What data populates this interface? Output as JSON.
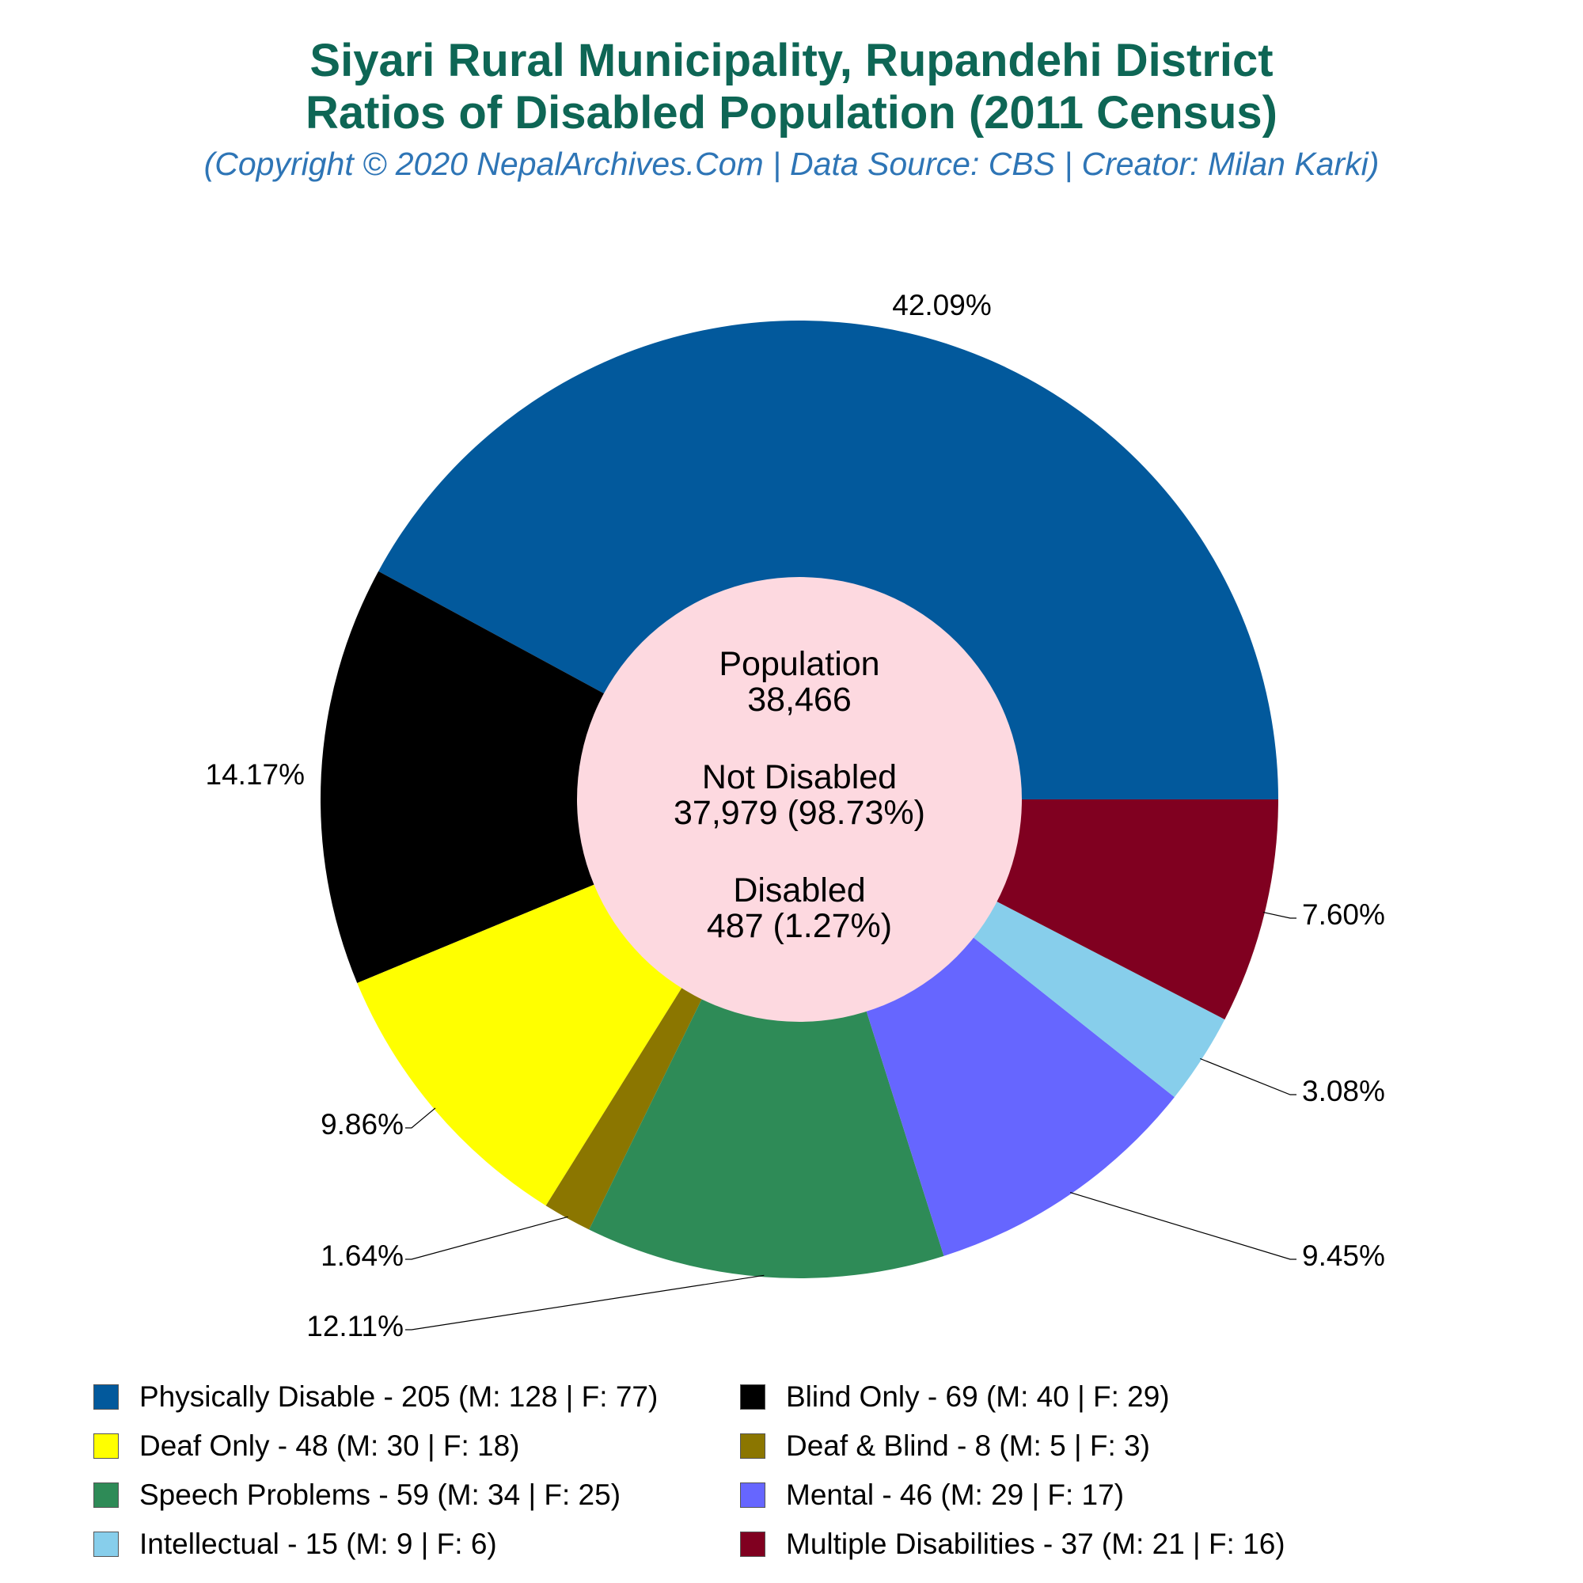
{
  "title_line1": "Siyari Rural Municipality, Rupandehi District",
  "title_line2": "Ratios of Disabled Population (2011 Census)",
  "subtitle": "(Copyright © 2020 NepalArchives.Com | Data Source: CBS | Creator: Milan Karki)",
  "center": {
    "population_label": "Population",
    "population_value": "38,466",
    "not_disabled_label": "Not Disabled",
    "not_disabled_value": "37,979 (98.73%)",
    "disabled_label": "Disabled",
    "disabled_value": "487 (1.27%)",
    "fill": "#fdd9e0"
  },
  "chart_data": {
    "type": "pie",
    "donut": true,
    "legend_position": "bottom",
    "slices": [
      {
        "label": "Physically Disable - 205 (M: 128 | F: 77)",
        "value": 205,
        "percent_label": "42.09%",
        "color": "#02599c"
      },
      {
        "label": "Blind Only - 69 (M: 40 | F: 29)",
        "value": 69,
        "percent_label": "14.17%",
        "color": "#000000"
      },
      {
        "label": "Deaf Only - 48 (M: 30 | F: 18)",
        "value": 48,
        "percent_label": "9.86%",
        "color": "#ffff00"
      },
      {
        "label": "Deaf & Blind - 8 (M: 5 | F: 3)",
        "value": 8,
        "percent_label": "1.64%",
        "color": "#8b7600"
      },
      {
        "label": "Speech Problems - 59 (M: 34 | F: 25)",
        "value": 59,
        "percent_label": "12.11%",
        "color": "#2e8b57"
      },
      {
        "label": "Mental - 46 (M: 29 | F: 17)",
        "value": 46,
        "percent_label": "9.45%",
        "color": "#6666ff"
      },
      {
        "label": "Intellectual - 15 (M: 9 | F: 6)",
        "value": 15,
        "percent_label": "3.08%",
        "color": "#87ceeb"
      },
      {
        "label": "Multiple Disabilities - 37 (M: 21 | F: 16)",
        "value": 37,
        "percent_label": "7.60%",
        "color": "#800020"
      }
    ]
  }
}
